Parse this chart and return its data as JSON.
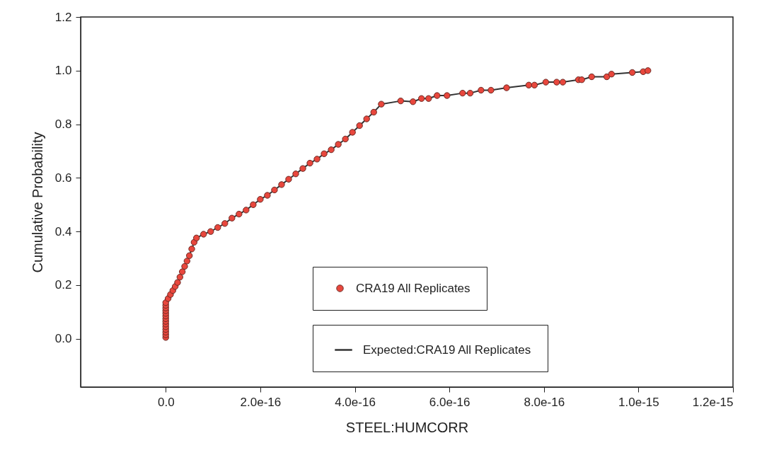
{
  "chart_data": {
    "type": "scatter",
    "xlabel": "STEEL:HUMCORR",
    "ylabel": "Cumulative Probability",
    "x": [
      0,
      0,
      0,
      0,
      0,
      0,
      0,
      0,
      0,
      0,
      0,
      0,
      0,
      0,
      5e-18,
      1e-17,
      1.5e-17,
      2e-17,
      2.5e-17,
      3e-17,
      3.5e-17,
      4e-17,
      4.5e-17,
      5e-17,
      5.5e-17,
      6e-17,
      6.5e-17,
      8e-17,
      9.5e-17,
      1.1e-16,
      1.25e-16,
      1.4e-16,
      1.55e-16,
      1.7e-16,
      1.85e-16,
      2e-16,
      2.15e-16,
      2.3e-16,
      2.45e-16,
      2.6e-16,
      2.75e-16,
      2.9e-16,
      3.05e-16,
      3.2e-16,
      3.35e-16,
      3.5e-16,
      3.65e-16,
      3.8e-16,
      3.95e-16,
      4.1e-16,
      4.25e-16,
      4.4e-16,
      4.56e-16,
      4.97e-16,
      5.23e-16,
      5.41e-16,
      5.56e-16,
      5.74e-16,
      5.95e-16,
      6.28e-16,
      6.44e-16,
      6.67e-16,
      6.88e-16,
      7.21e-16,
      7.68e-16,
      7.8e-16,
      8.04e-16,
      8.27e-16,
      8.4e-16,
      8.73e-16,
      8.8e-16,
      9.01e-16,
      9.33e-16,
      9.43e-16,
      9.87e-16,
      1.01e-15,
      1.02e-15
    ],
    "series": [
      {
        "name": "CRA19 All Replicates",
        "type": "scatter",
        "color": "#e8473d",
        "values": [
          0.005,
          0.015,
          0.025,
          0.035,
          0.045,
          0.055,
          0.065,
          0.075,
          0.085,
          0.095,
          0.105,
          0.115,
          0.125,
          0.135,
          0.15,
          0.165,
          0.18,
          0.195,
          0.21,
          0.23,
          0.25,
          0.27,
          0.29,
          0.31,
          0.335,
          0.36,
          0.376,
          0.39,
          0.4,
          0.415,
          0.43,
          0.45,
          0.465,
          0.48,
          0.5,
          0.52,
          0.535,
          0.555,
          0.575,
          0.595,
          0.615,
          0.635,
          0.655,
          0.67,
          0.69,
          0.705,
          0.725,
          0.745,
          0.77,
          0.795,
          0.82,
          0.845,
          0.875,
          0.887,
          0.884,
          0.896,
          0.896,
          0.907,
          0.907,
          0.916,
          0.916,
          0.927,
          0.927,
          0.936,
          0.946,
          0.946,
          0.957,
          0.957,
          0.957,
          0.966,
          0.966,
          0.977,
          0.977,
          0.987,
          0.993,
          0.996,
          1.0
        ]
      },
      {
        "name": "Expected:CRA19 All Replicates",
        "type": "line",
        "marker": "none",
        "color": "#333333",
        "values": [
          null,
          null,
          null,
          null,
          null,
          null,
          null,
          null,
          null,
          null,
          null,
          null,
          null,
          0.135,
          0.15,
          0.165,
          0.18,
          0.195,
          0.21,
          0.23,
          0.25,
          0.27,
          0.29,
          0.31,
          0.335,
          0.36,
          0.376,
          0.39,
          0.4,
          0.415,
          0.43,
          0.45,
          0.465,
          0.48,
          0.5,
          0.52,
          0.535,
          0.555,
          0.575,
          0.595,
          0.615,
          0.635,
          0.655,
          0.67,
          0.69,
          0.705,
          0.725,
          0.745,
          0.77,
          0.795,
          0.82,
          0.845,
          0.875,
          0.887,
          0.884,
          0.896,
          0.896,
          0.907,
          0.907,
          0.916,
          0.916,
          0.927,
          0.927,
          0.936,
          0.946,
          0.946,
          0.957,
          0.957,
          0.957,
          0.966,
          0.966,
          0.977,
          0.977,
          0.987,
          0.993,
          0.996,
          1.0
        ]
      }
    ],
    "xlim": [
      -1.8e-16,
      1.2e-15
    ],
    "xticks": [
      {
        "value": 0,
        "label": "0.0"
      },
      {
        "value": 2e-16,
        "label": "2.0e-16"
      },
      {
        "value": 4e-16,
        "label": "4.0e-16"
      },
      {
        "value": 6e-16,
        "label": "6.0e-16"
      },
      {
        "value": 8e-16,
        "label": "8.0e-16"
      },
      {
        "value": 1e-15,
        "label": "1.0e-15"
      },
      {
        "value": 1.2e-15,
        "label": "1.2e-15"
      }
    ],
    "ylim": [
      -0.18,
      1.2
    ],
    "yticks": [
      {
        "value": 0,
        "label": "0.0"
      },
      {
        "value": 0.2,
        "label": "0.2"
      },
      {
        "value": 0.4,
        "label": "0.4"
      },
      {
        "value": 0.6,
        "label": "0.6"
      },
      {
        "value": 0.8,
        "label": "0.8"
      },
      {
        "value": 1.0,
        "label": "1.0"
      },
      {
        "value": 1.2,
        "label": "1.2"
      }
    ],
    "marker": "circle",
    "line_style": "solid",
    "legend": "bottom right",
    "grid": false
  }
}
